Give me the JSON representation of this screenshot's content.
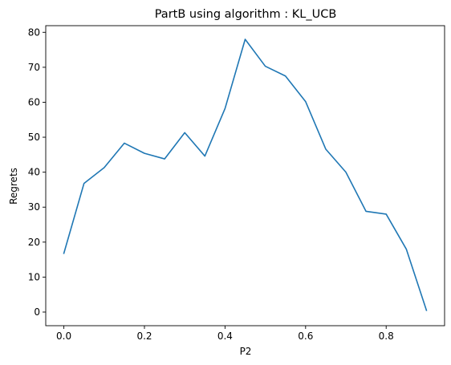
{
  "chart_data": {
    "type": "line",
    "title": "PartB using algorithm : KL_UCB",
    "xlabel": "P2",
    "ylabel": "Regrets",
    "xlim": [
      -0.045,
      0.945
    ],
    "ylim": [
      -3.9,
      81.9
    ],
    "grid": false,
    "xticks": [
      0.0,
      0.2,
      0.4,
      0.6,
      0.8
    ],
    "xtick_labels": [
      "0.0",
      "0.2",
      "0.4",
      "0.6",
      "0.8"
    ],
    "yticks": [
      0,
      10,
      20,
      30,
      40,
      50,
      60,
      70,
      80
    ],
    "ytick_labels": [
      "0",
      "10",
      "20",
      "30",
      "40",
      "50",
      "60",
      "70",
      "80"
    ],
    "series": [
      {
        "color": "#1f77b4",
        "x": [
          0.0,
          0.05,
          0.1,
          0.15,
          0.2,
          0.25,
          0.3,
          0.35,
          0.4,
          0.45,
          0.5,
          0.55,
          0.6,
          0.65,
          0.7,
          0.75,
          0.8,
          0.85,
          0.9
        ],
        "y": [
          16.8,
          36.8,
          41.3,
          48.3,
          45.4,
          43.8,
          51.3,
          44.6,
          58.2,
          78.0,
          70.3,
          67.5,
          60.2,
          46.6,
          40.0,
          28.8,
          28.0,
          18.0,
          0.5
        ]
      }
    ]
  }
}
